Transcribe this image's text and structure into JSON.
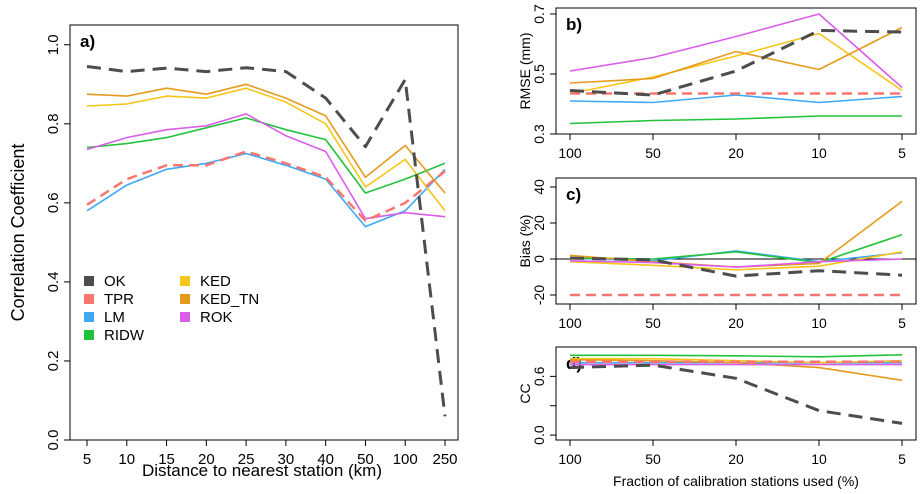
{
  "colors": {
    "OK": "#4d4d4d",
    "TPR": "#f8766d",
    "LM": "#3fa9f5",
    "RIDW": "#22c33a",
    "KED": "#f5c518",
    "KED_TN": "#e69a1c",
    "ROK": "#d95ee8"
  },
  "chart_data": [
    {
      "panel": "a)",
      "type": "line",
      "xlabel": "Distance to nearest station (km)",
      "ylabel": "Correlation Coefficient",
      "categories": [
        "5",
        "10",
        "15",
        "20",
        "25",
        "30",
        "40",
        "50",
        "100",
        "250"
      ],
      "ylim": [
        0,
        1.05
      ],
      "yticks": [
        "0.0",
        "0.2",
        "0.4",
        "0.6",
        "0.8",
        "1.0"
      ],
      "legend": [
        "OK",
        "TPR",
        "LM",
        "RIDW",
        "KED",
        "KED_TN",
        "ROK"
      ],
      "series": [
        {
          "name": "OK",
          "values": [
            0.945,
            0.932,
            0.941,
            0.932,
            0.942,
            0.932,
            0.865,
            0.742,
            0.912,
            0.06
          ]
        },
        {
          "name": "TPR",
          "values": [
            0.595,
            0.66,
            0.695,
            0.695,
            0.73,
            0.7,
            0.665,
            0.555,
            0.6,
            0.68
          ]
        },
        {
          "name": "LM",
          "values": [
            0.58,
            0.645,
            0.685,
            0.7,
            0.725,
            0.695,
            0.66,
            0.54,
            0.58,
            0.685
          ]
        },
        {
          "name": "RIDW",
          "values": [
            0.74,
            0.75,
            0.765,
            0.79,
            0.815,
            0.785,
            0.76,
            0.625,
            0.66,
            0.7
          ]
        },
        {
          "name": "KED",
          "values": [
            0.845,
            0.85,
            0.87,
            0.865,
            0.89,
            0.855,
            0.8,
            0.64,
            0.71,
            0.58
          ]
        },
        {
          "name": "KED_TN",
          "values": [
            0.875,
            0.87,
            0.89,
            0.875,
            0.9,
            0.865,
            0.82,
            0.665,
            0.745,
            0.625
          ]
        },
        {
          "name": "ROK",
          "values": [
            0.735,
            0.765,
            0.785,
            0.795,
            0.825,
            0.77,
            0.73,
            0.56,
            0.575,
            0.565
          ]
        }
      ]
    },
    {
      "panel": "b)",
      "type": "line",
      "ylabel": "RMSE (mm)",
      "categories": [
        "100",
        "50",
        "20",
        "10",
        "5"
      ],
      "ylim": [
        0.3,
        0.72
      ],
      "yticks": [
        "0.3",
        "0.5",
        "0.7"
      ],
      "series": [
        {
          "name": "OK",
          "values": [
            0.445,
            0.43,
            0.51,
            0.645,
            0.64
          ]
        },
        {
          "name": "TPR",
          "values": [
            0.435,
            0.435,
            0.435,
            0.435,
            0.435
          ]
        },
        {
          "name": "LM",
          "values": [
            0.41,
            0.405,
            0.43,
            0.405,
            0.425
          ]
        },
        {
          "name": "RIDW",
          "values": [
            0.335,
            0.345,
            0.35,
            0.36,
            0.36
          ]
        },
        {
          "name": "KED",
          "values": [
            0.435,
            0.49,
            0.56,
            0.635,
            0.445
          ]
        },
        {
          "name": "KED_TN",
          "values": [
            0.47,
            0.485,
            0.575,
            0.515,
            0.655
          ]
        },
        {
          "name": "ROK",
          "values": [
            0.51,
            0.555,
            0.625,
            0.7,
            0.455
          ]
        }
      ]
    },
    {
      "panel": "c)",
      "type": "line",
      "ylabel": "Bias (%)",
      "categories": [
        "100",
        "50",
        "20",
        "10",
        "5"
      ],
      "ylim": [
        -25,
        45
      ],
      "yticks": [
        "-20",
        "0",
        "20",
        "40"
      ],
      "series": [
        {
          "name": "OK",
          "values": [
            0.5,
            -0.5,
            -9.5,
            -6.5,
            -9.0
          ]
        },
        {
          "name": "TPR",
          "values": [
            -20,
            -20,
            -20,
            -20,
            -20
          ]
        },
        {
          "name": "LM",
          "values": [
            0.5,
            -1.0,
            4.5,
            -1.5,
            3.5
          ]
        },
        {
          "name": "RIDW",
          "values": [
            0.5,
            0.0,
            4.0,
            -2.0,
            13.5
          ]
        },
        {
          "name": "KED",
          "values": [
            -1.5,
            -3.5,
            -6.0,
            -4.0,
            4.0
          ]
        },
        {
          "name": "KED_TN",
          "values": [
            2.0,
            -1.5,
            -4.5,
            -2.5,
            32.0
          ]
        },
        {
          "name": "ROK",
          "values": [
            -1.0,
            -2.0,
            -4.5,
            -1.5,
            0.0
          ]
        }
      ]
    },
    {
      "panel": "d)",
      "type": "line",
      "ylabel": "CC",
      "xlabel": "Fraction of calibration stations used (%)",
      "categories": [
        "100",
        "50",
        "20",
        "10",
        "5"
      ],
      "ylim": [
        -0.05,
        0.9
      ],
      "yticks": [
        "0.0",
        "0.6"
      ],
      "yticks_minor": [
        "0.3"
      ],
      "series": [
        {
          "name": "OK",
          "values": [
            0.69,
            0.715,
            0.58,
            0.25,
            0.12
          ]
        },
        {
          "name": "TPR",
          "values": [
            0.75,
            0.75,
            0.75,
            0.75,
            0.75
          ]
        },
        {
          "name": "LM",
          "values": [
            0.74,
            0.74,
            0.74,
            0.74,
            0.74
          ]
        },
        {
          "name": "RIDW",
          "values": [
            0.815,
            0.815,
            0.81,
            0.8,
            0.82
          ]
        },
        {
          "name": "KED",
          "values": [
            0.78,
            0.78,
            0.76,
            0.74,
            0.76
          ]
        },
        {
          "name": "KED_TN",
          "values": [
            0.77,
            0.76,
            0.74,
            0.69,
            0.56
          ]
        },
        {
          "name": "ROK",
          "values": [
            0.72,
            0.72,
            0.72,
            0.72,
            0.72
          ]
        }
      ]
    }
  ]
}
